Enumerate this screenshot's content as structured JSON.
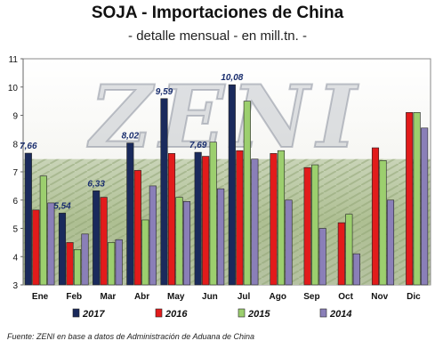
{
  "chart_data": {
    "type": "bar",
    "title": "SOJA - Importaciones de China",
    "subtitle": "- detalle mensual - en mill.tn. -",
    "source": "Fuente: ZENI en base a datos de Administración de Aduana de China",
    "watermark": "ZENI",
    "categories": [
      "Ene",
      "Feb",
      "Mar",
      "Abr",
      "May",
      "Jun",
      "Jul",
      "Ago",
      "Sep",
      "Oct",
      "Nov",
      "Dic"
    ],
    "ylim": [
      3,
      11
    ],
    "yticks": [
      3,
      4,
      5,
      6,
      7,
      8,
      9,
      10,
      11
    ],
    "grid": false,
    "legend_position": "bottom",
    "background": "photo of a soybean field (bottom half of plot area)",
    "series": [
      {
        "name": "2017",
        "color": "#1a2a5c",
        "values": [
          7.66,
          5.54,
          6.33,
          8.02,
          9.59,
          7.69,
          10.08,
          null,
          null,
          null,
          null,
          null
        ]
      },
      {
        "name": "2016",
        "color": "#e21b1b",
        "values": [
          5.65,
          4.5,
          6.1,
          7.05,
          7.65,
          7.55,
          7.75,
          7.65,
          7.15,
          5.2,
          7.85,
          9.1
        ]
      },
      {
        "name": "2015",
        "color": "#9ccf6e",
        "values": [
          6.85,
          4.25,
          4.5,
          5.3,
          6.1,
          8.05,
          9.5,
          7.75,
          7.25,
          5.5,
          7.4,
          9.1
        ]
      },
      {
        "name": "2014",
        "color": "#8a7fb8",
        "values": [
          5.9,
          4.8,
          4.6,
          6.5,
          5.95,
          6.4,
          7.45,
          6.0,
          5.0,
          4.1,
          6.0,
          8.55
        ]
      }
    ],
    "data_labels": [
      {
        "series": "2017",
        "category": "Ene",
        "text": "7,66"
      },
      {
        "series": "2017",
        "category": "Feb",
        "text": "5,54"
      },
      {
        "series": "2017",
        "category": "Mar",
        "text": "6,33"
      },
      {
        "series": "2017",
        "category": "Abr",
        "text": "8,02"
      },
      {
        "series": "2017",
        "category": "May",
        "text": "9,59"
      },
      {
        "series": "2017",
        "category": "Jun",
        "text": "7,69"
      },
      {
        "series": "2017",
        "category": "Jul",
        "text": "10,08"
      }
    ]
  }
}
